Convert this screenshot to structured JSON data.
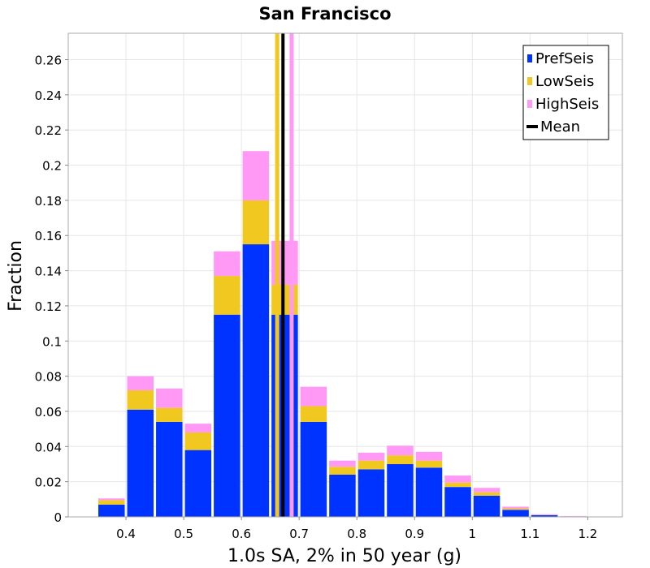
{
  "chart_data": {
    "type": "bar",
    "stacked": true,
    "title": "San Francisco",
    "xlabel": "1.0s SA, 2% in 50 year (g)",
    "ylabel": "Fraction",
    "xlim": [
      0.3,
      1.26
    ],
    "ylim": [
      0,
      0.275
    ],
    "xticks": [
      0.4,
      0.5,
      0.6,
      0.7,
      0.8,
      0.9,
      1.0,
      1.1,
      1.2
    ],
    "xtick_labels": [
      "0.4",
      "0.5",
      "0.6",
      "0.7",
      "0.8",
      "0.9",
      "1",
      "1.1",
      "1.2"
    ],
    "yticks": [
      0,
      0.02,
      0.04,
      0.06,
      0.08,
      0.1,
      0.12,
      0.14,
      0.16,
      0.18,
      0.2,
      0.22,
      0.24,
      0.26
    ],
    "ytick_labels": [
      "0",
      "0.02",
      "0.04",
      "0.06",
      "0.08",
      "0.1",
      "0.12",
      "0.14",
      "0.16",
      "0.18",
      "0.2",
      "0.22",
      "0.24",
      "0.26"
    ],
    "grid": true,
    "legend_position": "top-right",
    "bin_width": 0.05,
    "bin_centers": [
      0.375,
      0.425,
      0.475,
      0.525,
      0.575,
      0.625,
      0.675,
      0.725,
      0.775,
      0.825,
      0.875,
      0.925,
      0.975,
      1.025,
      1.075,
      1.125,
      1.175
    ],
    "series": [
      {
        "name": "PrefSeis",
        "color": "#0033ff",
        "values": [
          0.007,
          0.061,
          0.054,
          0.038,
          0.115,
          0.155,
          0.115,
          0.054,
          0.024,
          0.027,
          0.03,
          0.028,
          0.017,
          0.012,
          0.004,
          0.001,
          0.0002
        ]
      },
      {
        "name": "LowSeis",
        "color": "#f0c820",
        "values": [
          0.0025,
          0.011,
          0.008,
          0.01,
          0.022,
          0.025,
          0.017,
          0.009,
          0.0045,
          0.005,
          0.005,
          0.004,
          0.0025,
          0.002,
          0.0008,
          0.0002,
          0.0001
        ]
      },
      {
        "name": "HighSeis",
        "color": "#ff99f5",
        "values": [
          0.001,
          0.008,
          0.011,
          0.005,
          0.014,
          0.028,
          0.025,
          0.011,
          0.0035,
          0.0045,
          0.0055,
          0.005,
          0.004,
          0.0025,
          0.001,
          0.0003,
          0.0002
        ]
      }
    ],
    "mean_lines": [
      {
        "name": "Mean",
        "x": 0.672,
        "color": "#000000"
      },
      {
        "name": "LowSeis",
        "x": 0.662,
        "color": "#f0c820"
      },
      {
        "name": "HighSeis",
        "x": 0.687,
        "color": "#ff99f5"
      }
    ],
    "legend": [
      {
        "label": "PrefSeis",
        "color": "#0033ff",
        "symbol": "box"
      },
      {
        "label": "LowSeis",
        "color": "#f0c820",
        "symbol": "box"
      },
      {
        "label": "HighSeis",
        "color": "#ff99f5",
        "symbol": "box"
      },
      {
        "label": "Mean",
        "color": "#000000",
        "symbol": "line"
      }
    ]
  }
}
